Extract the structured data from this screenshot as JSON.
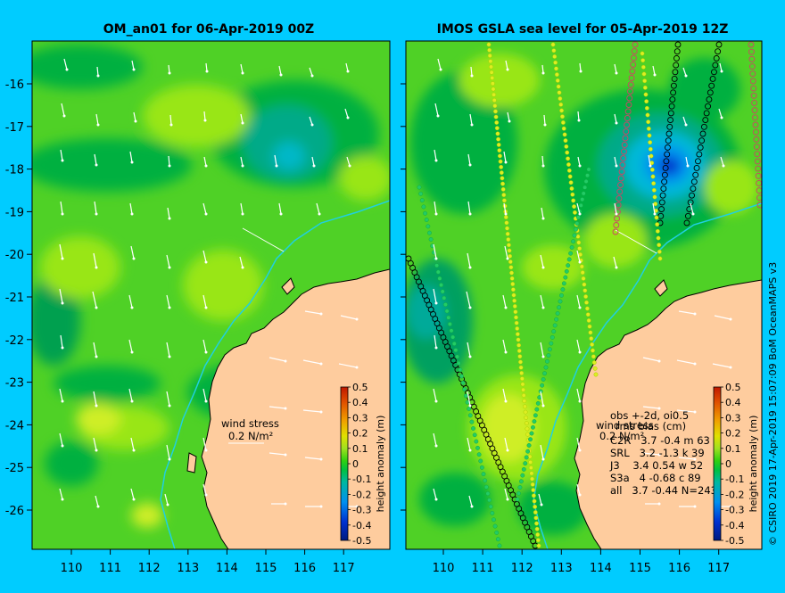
{
  "left_panel": {
    "title": "OM_an01 for 06-Apr-2019 00Z",
    "wind_label_line1": "wind stress",
    "wind_label_line2": "0.2 N/m²"
  },
  "right_panel": {
    "title": "IMOS GSLA sea level  for 05-Apr-2019 12Z",
    "wind_label_line1": "wind stress",
    "wind_label_line2": "0.2 N/m²",
    "obs_header": "obs +-2d, oi0.5",
    "rms_header": "rms bias (cm)",
    "stats": [
      "C2R   3.7 -0.4 m 63",
      "SRL   3.2 -1.3 k 39",
      "J3    3.4 0.54 w 52",
      "S3a   4 -0.68 c 89",
      "all   3.7 -0.44 N=243"
    ]
  },
  "axes": {
    "x_ticks": [
      "110",
      "111",
      "112",
      "113",
      "114",
      "115",
      "116",
      "117"
    ],
    "y_ticks": [
      "-16",
      "-17",
      "-18",
      "-19",
      "-20",
      "-21",
      "-22",
      "-23",
      "-24",
      "-25",
      "-26"
    ]
  },
  "colorbar": {
    "label": "height anomaly (m)",
    "ticks": [
      "0.5",
      "0.4",
      "0.3",
      "0.2",
      "0.1",
      "0",
      "-0.1",
      "-0.2",
      "-0.3",
      "-0.4",
      "-0.5"
    ],
    "colors": [
      "#002080",
      "#0033cc",
      "#0088ee",
      "#00bbcc",
      "#00aa77",
      "#00c830",
      "#55dd11",
      "#aaee22",
      "#dddd00",
      "#eeaa00",
      "#dd5500",
      "#cc2200"
    ]
  },
  "credit": "© CSIRO 2019   17-Apr-2019 15:07:09 BoM OceanMAPS v3",
  "colors": {
    "background": "#00ccff",
    "land": "#fecc9e",
    "base_green": "#4fd126",
    "contour_dark": "#00b040",
    "contour_light": "#99e618",
    "contour_yellow": "#cfee28"
  }
}
